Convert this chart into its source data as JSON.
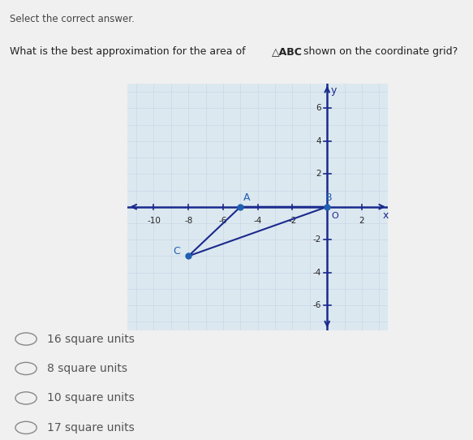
{
  "vertices": {
    "A": [
      -5,
      0
    ],
    "B": [
      0,
      0
    ],
    "C": [
      -8,
      -3
    ]
  },
  "xlim": [
    -11.5,
    3.5
  ],
  "ylim": [
    -7.5,
    7.5
  ],
  "grid_minor_color": "#c8d8e8",
  "grid_major_color": "#b0c0d0",
  "axis_color": "#1a2a8c",
  "triangle_color": "#1a2a8c",
  "vertex_color": "#2060b0",
  "label_color": "#2060b0",
  "bg_color": "#dce8f0",
  "fig_bg": "#f0f0f0",
  "choices": [
    "16 square units",
    "8 square units",
    "10 square units",
    "17 square units"
  ],
  "xticks": [
    -10,
    -8,
    -6,
    -4,
    -2,
    2
  ],
  "yticks": [
    -6,
    -4,
    -2,
    2,
    4,
    6
  ],
  "choice_text_color": "#555555",
  "header": "Select the correct answer.",
  "question_pre": "What is the best approximation for the area of ",
  "question_bold": "△ABC",
  "question_post": " shown on the coordinate grid?"
}
